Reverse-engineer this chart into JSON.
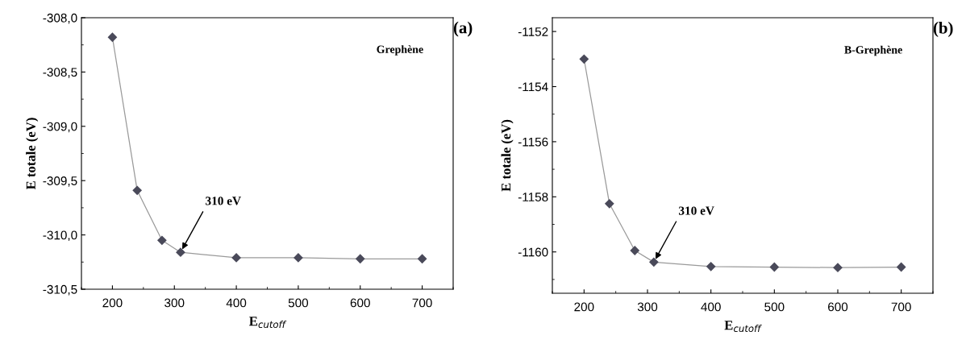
{
  "chart_data": [
    {
      "type": "line",
      "title": "(a)",
      "xlabel": "E$_{cutoff}$",
      "ylabel": "E totale (eV)",
      "annotations": [
        "Grephène",
        {
          "text": "310 eV",
          "x": 310,
          "y": -310.16
        }
      ],
      "x": [
        200,
        240,
        280,
        310,
        400,
        500,
        600,
        700
      ],
      "series": [
        {
          "color": "#4a4a5a",
          "values": [
            -308.18,
            -309.59,
            -310.05,
            -310.16,
            -310.21,
            -310.21,
            -310.22,
            -310.22
          ]
        }
      ],
      "xlim": [
        150,
        750
      ],
      "xticks": [
        200,
        300,
        400,
        500,
        600,
        700
      ],
      "ylim": [
        -310.5,
        -308.0
      ],
      "yticks": [
        {
          "value": -310.5,
          "label": "-310,5"
        },
        {
          "value": -310.0,
          "label": "-310,0"
        },
        {
          "value": -309.5,
          "label": "-309,5"
        },
        {
          "value": -309.0,
          "label": "-309,0"
        },
        {
          "value": -308.5,
          "label": "-308,5"
        },
        {
          "value": -308.0,
          "label": "-308,0"
        }
      ],
      "marker": "diamond",
      "line_style": "solid",
      "grid": false,
      "legend": false
    },
    {
      "type": "line",
      "title": "(b)",
      "xlabel": "E$_{cutoff}$",
      "ylabel": "E totale (eV)",
      "annotations": [
        "B-Grephène",
        {
          "text": "310 eV",
          "x": 310,
          "y": -1160.37
        }
      ],
      "x": [
        200,
        240,
        280,
        310,
        400,
        500,
        600,
        700
      ],
      "series": [
        {
          "color": "#4a4a5a",
          "values": [
            -1153.0,
            -1158.25,
            -1159.95,
            -1160.37,
            -1160.53,
            -1160.55,
            -1160.57,
            -1160.55
          ]
        }
      ],
      "xlim": [
        150,
        750
      ],
      "xticks": [
        200,
        300,
        400,
        500,
        600,
        700
      ],
      "ylim": [
        -1161.5,
        -1151.5
      ],
      "yticks": [
        -1160,
        -1158,
        -1156,
        -1154,
        -1152
      ],
      "marker": "diamond",
      "line_style": "solid",
      "grid": false,
      "legend": false
    }
  ]
}
